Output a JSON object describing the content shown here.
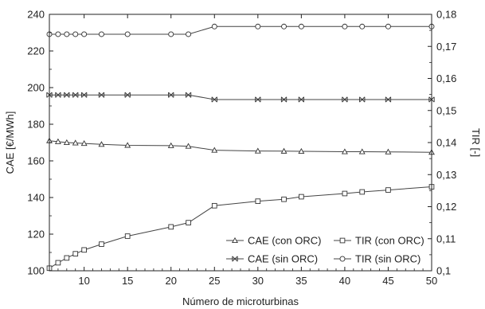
{
  "chart_data": {
    "type": "line",
    "title": "",
    "xlabel": "Número de microturbinas",
    "ylabel_left": "CAE [€/MWh]",
    "ylabel_right": "TIR [-]",
    "xlim": [
      6,
      50
    ],
    "ylim_left": [
      100,
      240
    ],
    "ylim_right": [
      0.1,
      0.18
    ],
    "x_ticks": [
      10,
      15,
      20,
      25,
      30,
      35,
      40,
      45,
      50
    ],
    "y_left_ticks": [
      100,
      120,
      140,
      160,
      180,
      200,
      220,
      240
    ],
    "y_right_ticks": [
      "0,1",
      "0,11",
      "0,12",
      "0,13",
      "0,14",
      "0,15",
      "0,16",
      "0,17",
      "0,18"
    ],
    "y_right_tick_values": [
      0.1,
      0.11,
      0.12,
      0.13,
      0.14,
      0.15,
      0.16,
      0.17,
      0.18
    ],
    "grid": false,
    "legend_position": "bottom-right",
    "series": [
      {
        "name": "CAE (con ORC)",
        "axis": "left",
        "marker": "triangle",
        "x": [
          6,
          7,
          8,
          9,
          10,
          12,
          15,
          20,
          22,
          25,
          30,
          33,
          35,
          40,
          42,
          45,
          50
        ],
        "y": [
          171,
          170.5,
          170,
          169.8,
          169.5,
          169,
          168.5,
          168.3,
          168,
          165.8,
          165.4,
          165.3,
          165.2,
          165,
          165,
          164.9,
          164.7
        ]
      },
      {
        "name": "CAE (sin ORC)",
        "axis": "left",
        "marker": "bowtie",
        "x": [
          6,
          7,
          8,
          9,
          10,
          12,
          15,
          20,
          22,
          25,
          30,
          33,
          35,
          40,
          42,
          45,
          50
        ],
        "y": [
          196,
          196,
          196,
          196,
          196,
          196,
          196,
          196,
          196,
          193.5,
          193.5,
          193.5,
          193.5,
          193.5,
          193.5,
          193.5,
          193.5
        ]
      },
      {
        "name": "TIR (con ORC)",
        "axis": "right",
        "marker": "square",
        "x": [
          6,
          7,
          8,
          9,
          10,
          12,
          15,
          20,
          22,
          25,
          30,
          33,
          35,
          40,
          42,
          45,
          50
        ],
        "y": [
          0.1008,
          0.1025,
          0.104,
          0.1053,
          0.1065,
          0.1083,
          0.1108,
          0.1137,
          0.115,
          0.1203,
          0.1217,
          0.1223,
          0.1231,
          0.1241,
          0.1246,
          0.1252,
          0.1262
        ]
      },
      {
        "name": "TIR (sin ORC)",
        "axis": "right",
        "marker": "circle",
        "x": [
          6,
          7,
          8,
          9,
          10,
          12,
          15,
          20,
          22,
          25,
          30,
          33,
          35,
          40,
          42,
          45,
          50
        ],
        "y": [
          0.1738,
          0.1738,
          0.1738,
          0.1738,
          0.1738,
          0.1738,
          0.1738,
          0.1738,
          0.1738,
          0.1762,
          0.1762,
          0.1762,
          0.1762,
          0.1762,
          0.1762,
          0.1762,
          0.1762
        ]
      }
    ]
  }
}
